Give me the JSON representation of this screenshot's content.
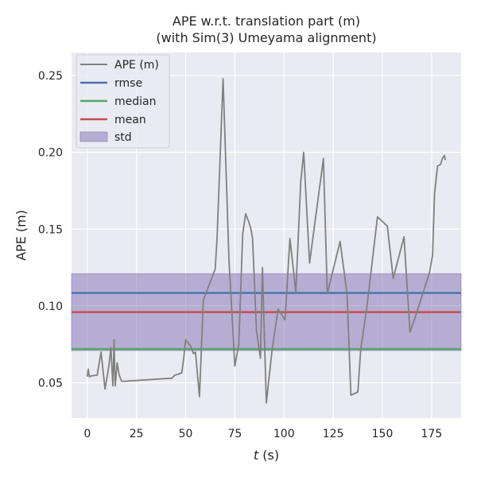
{
  "chart_data": {
    "type": "line",
    "title": "APE w.r.t. translation part (m)",
    "subtitle": "(with Sim(3) Umeyama alignment)",
    "xlabel_var": "t",
    "xlabel_unit": " (s)",
    "ylabel": "APE (m)",
    "xlim": [
      -8,
      190
    ],
    "ylim": [
      0.027,
      0.265
    ],
    "xticks": [
      0,
      25,
      50,
      75,
      100,
      125,
      150,
      175
    ],
    "xtick_labels": [
      "0",
      "25",
      "50",
      "75",
      "100",
      "125",
      "150",
      "175"
    ],
    "yticks": [
      0.05,
      0.1,
      0.15,
      0.2,
      0.25
    ],
    "ytick_labels": [
      "0.05",
      "0.10",
      "0.15",
      "0.20",
      "0.25"
    ],
    "grid": true,
    "legend_position": "upper-left",
    "colors": {
      "background": "#eaeaf2",
      "grid": "#ffffff",
      "ape": "#808080",
      "rmse": "#4c72b0",
      "median": "#55a868",
      "mean": "#c44e52",
      "std": "#8172b2"
    },
    "series": [
      {
        "name": "APE (m)",
        "x": [
          0,
          0.5,
          1,
          2,
          5,
          7,
          9,
          11,
          12,
          13,
          13.6,
          14.2,
          15.2,
          16.2,
          17.5,
          18.5,
          43,
          44.5,
          46,
          48,
          49,
          50,
          52.5,
          54,
          55,
          57,
          59,
          62,
          65,
          66,
          69,
          72,
          75,
          77,
          79,
          80.5,
          82,
          83,
          84,
          86,
          88,
          89,
          91,
          94,
          97,
          100.5,
          103,
          106,
          108.5,
          110,
          113,
          120,
          122,
          128.5,
          132,
          134,
          137.5,
          139,
          142,
          147.5,
          152.5,
          155.5,
          161,
          164,
          167,
          174,
          175.5,
          176.5,
          178,
          179.5,
          180.5,
          181.5,
          182
        ],
        "values": [
          0.054,
          0.059,
          0.054,
          0.0545,
          0.055,
          0.07,
          0.046,
          0.061,
          0.073,
          0.048,
          0.078,
          0.048,
          0.063,
          0.055,
          0.051,
          0.051,
          0.053,
          0.055,
          0.0555,
          0.0565,
          0.066,
          0.078,
          0.074,
          0.069,
          0.07,
          0.041,
          0.104,
          0.114,
          0.124,
          0.145,
          0.248,
          0.13,
          0.061,
          0.075,
          0.147,
          0.16,
          0.155,
          0.151,
          0.144,
          0.084,
          0.066,
          0.125,
          0.037,
          0.072,
          0.098,
          0.091,
          0.144,
          0.109,
          0.181,
          0.2,
          0.128,
          0.196,
          0.108,
          0.142,
          0.108,
          0.042,
          0.044,
          0.072,
          0.098,
          0.158,
          0.152,
          0.118,
          0.145,
          0.083,
          0.094,
          0.122,
          0.133,
          0.173,
          0.191,
          0.192,
          0.196,
          0.198,
          0.195
        ]
      },
      {
        "name": "rmse",
        "values": [
          0.1085
        ]
      },
      {
        "name": "median",
        "values": [
          0.072
        ]
      },
      {
        "name": "mean",
        "values": [
          0.096
        ]
      },
      {
        "name": "std",
        "range": [
          0.071,
          0.121
        ]
      }
    ]
  }
}
